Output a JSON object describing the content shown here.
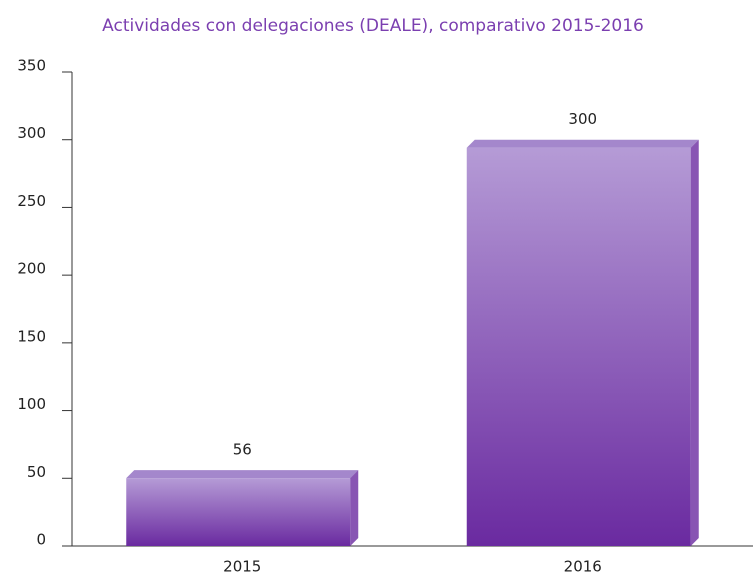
{
  "chart_data": {
    "type": "bar",
    "title": "Actividades con delegaciones (DEALE), comparativo 2015-2016",
    "categories": [
      "2015",
      "2016"
    ],
    "values": [
      56,
      300
    ],
    "color": "#6a2aa0",
    "ylim": [
      0,
      350
    ],
    "yticks": [
      0,
      50,
      100,
      150,
      200,
      250,
      300,
      350
    ]
  }
}
